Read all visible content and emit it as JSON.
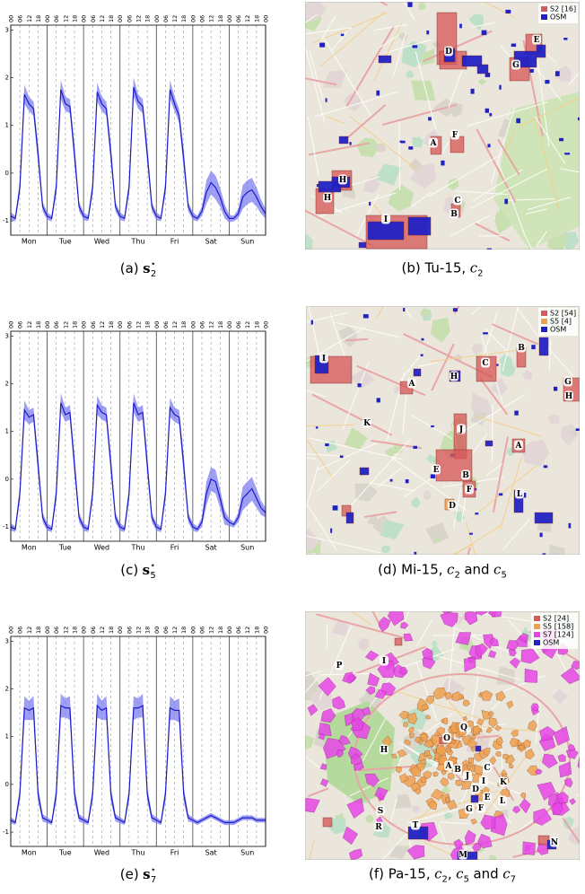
{
  "chart_data": [
    {
      "type": "line",
      "x": [
        0,
        3,
        6,
        9,
        12,
        15,
        18,
        21,
        24,
        27,
        30,
        33,
        36,
        39,
        42,
        45,
        48,
        51,
        54,
        57,
        60,
        63,
        66,
        69,
        72,
        75,
        78,
        81,
        84,
        87,
        90,
        93,
        96,
        99,
        102,
        105,
        108,
        111,
        114,
        117,
        120,
        123,
        126,
        129,
        132,
        135,
        138,
        141,
        144,
        147,
        150,
        153,
        156,
        159,
        162,
        165,
        168
      ],
      "xlim": [
        0,
        168
      ],
      "ylim": [
        -1.3,
        3.1
      ],
      "yticks": [
        -1,
        0,
        1,
        2,
        3
      ],
      "xticks": [
        {
          "value": 0,
          "label": "00"
        },
        {
          "value": 6,
          "label": "06"
        },
        12,
        18,
        {
          "value": 24,
          "label": "00"
        },
        {
          "value": 30,
          "label": "06"
        },
        {
          "value": 36,
          "label": "12"
        },
        {
          "value": 42,
          "label": "18"
        },
        {
          "value": 48,
          "label": "00"
        },
        {
          "value": 54,
          "label": "06"
        },
        {
          "value": 60,
          "label": "12"
        },
        {
          "value": 66,
          "label": "18"
        },
        {
          "value": 72,
          "label": "00"
        },
        {
          "value": 78,
          "label": "06"
        },
        {
          "value": 84,
          "label": "12"
        },
        {
          "value": 90,
          "label": "18"
        },
        {
          "value": 96,
          "label": "00"
        },
        {
          "value": 102,
          "label": "06"
        },
        {
          "value": 108,
          "label": "12"
        },
        {
          "value": 114,
          "label": "18"
        },
        {
          "value": 120,
          "label": "00"
        },
        {
          "value": 126,
          "label": "06"
        },
        {
          "value": 132,
          "label": "12"
        },
        {
          "value": 138,
          "label": "18"
        },
        {
          "value": 144,
          "label": "00"
        },
        {
          "value": 150,
          "label": "06"
        },
        {
          "value": 156,
          "label": "12"
        },
        {
          "value": 162,
          "label": "18"
        },
        {
          "value": 168,
          "label": "00"
        }
      ],
      "categories": [
        "Mon",
        "Tue",
        "Wed",
        "Thu",
        "Fri",
        "Sat",
        "Sun"
      ],
      "series": [
        {
          "color": "#1c1cc8",
          "band_color": "#7d7df2",
          "values": [
            -0.9,
            -0.95,
            -0.3,
            1.65,
            1.45,
            1.35,
            0.4,
            -0.7,
            -0.9,
            -0.95,
            -0.3,
            1.75,
            1.45,
            1.4,
            0.4,
            -0.7,
            -0.9,
            -0.95,
            -0.3,
            1.7,
            1.45,
            1.35,
            0.4,
            -0.7,
            -0.9,
            -0.95,
            -0.3,
            1.8,
            1.5,
            1.4,
            0.4,
            -0.7,
            -0.9,
            -0.95,
            -0.3,
            1.75,
            1.45,
            1.2,
            0.3,
            -0.7,
            -0.9,
            -0.95,
            -0.8,
            -0.4,
            -0.2,
            -0.3,
            -0.5,
            -0.8,
            -0.95,
            -0.95,
            -0.85,
            -0.5,
            -0.4,
            -0.35,
            -0.5,
            -0.7,
            -0.85
          ],
          "spread": [
            0.08,
            0.06,
            0.15,
            0.2,
            0.15,
            0.15,
            0.2,
            0.1,
            0.08,
            0.06,
            0.15,
            0.2,
            0.15,
            0.15,
            0.2,
            0.1,
            0.08,
            0.06,
            0.15,
            0.2,
            0.15,
            0.15,
            0.2,
            0.1,
            0.08,
            0.06,
            0.15,
            0.2,
            0.15,
            0.15,
            0.2,
            0.1,
            0.08,
            0.06,
            0.15,
            0.2,
            0.15,
            0.15,
            0.2,
            0.1,
            0.08,
            0.06,
            0.1,
            0.25,
            0.25,
            0.25,
            0.2,
            0.15,
            0.08,
            0.06,
            0.1,
            0.25,
            0.25,
            0.25,
            0.2,
            0.15,
            0.1
          ]
        }
      ]
    },
    {
      "type": "line",
      "x": [
        0,
        3,
        6,
        9,
        12,
        15,
        18,
        21,
        24,
        27,
        30,
        33,
        36,
        39,
        42,
        45,
        48,
        51,
        54,
        57,
        60,
        63,
        66,
        69,
        72,
        75,
        78,
        81,
        84,
        87,
        90,
        93,
        96,
        99,
        102,
        105,
        108,
        111,
        114,
        117,
        120,
        123,
        126,
        129,
        132,
        135,
        138,
        141,
        144,
        147,
        150,
        153,
        156,
        159,
        162,
        165,
        168
      ],
      "xlim": [
        0,
        168
      ],
      "ylim": [
        -1.3,
        3.1
      ],
      "yticks": [
        -1,
        0,
        1,
        2,
        3
      ],
      "xticks": [
        {
          "value": 0,
          "label": "00"
        },
        {
          "value": 6,
          "label": "06"
        },
        12,
        18,
        {
          "value": 24,
          "label": "00"
        },
        {
          "value": 30,
          "label": "06"
        },
        {
          "value": 36,
          "label": "12"
        },
        {
          "value": 42,
          "label": "18"
        },
        {
          "value": 48,
          "label": "00"
        },
        {
          "value": 54,
          "label": "06"
        },
        {
          "value": 60,
          "label": "12"
        },
        {
          "value": 66,
          "label": "18"
        },
        {
          "value": 72,
          "label": "00"
        },
        {
          "value": 78,
          "label": "06"
        },
        {
          "value": 84,
          "label": "12"
        },
        {
          "value": 90,
          "label": "18"
        },
        {
          "value": 96,
          "label": "00"
        },
        {
          "value": 102,
          "label": "06"
        },
        {
          "value": 108,
          "label": "12"
        },
        {
          "value": 114,
          "label": "18"
        },
        {
          "value": 120,
          "label": "00"
        },
        {
          "value": 126,
          "label": "06"
        },
        {
          "value": 132,
          "label": "12"
        },
        {
          "value": 138,
          "label": "18"
        },
        {
          "value": 144,
          "label": "00"
        },
        {
          "value": 150,
          "label": "06"
        },
        {
          "value": 156,
          "label": "12"
        },
        {
          "value": 162,
          "label": "18"
        },
        {
          "value": 168,
          "label": "00"
        }
      ],
      "categories": [
        "Mon",
        "Tue",
        "Wed",
        "Thu",
        "Fri",
        "Sat",
        "Sun"
      ],
      "series": [
        {
          "color": "#1c1cc8",
          "band_color": "#7d7df2",
          "values": [
            -1.0,
            -1.05,
            -0.3,
            1.45,
            1.3,
            1.35,
            0.3,
            -0.8,
            -1.0,
            -1.05,
            -0.3,
            1.6,
            1.35,
            1.4,
            0.3,
            -0.8,
            -1.0,
            -1.05,
            -0.3,
            1.55,
            1.4,
            1.35,
            0.3,
            -0.8,
            -1.0,
            -1.05,
            -0.3,
            1.6,
            1.35,
            1.4,
            0.3,
            -0.8,
            -1.0,
            -1.05,
            -0.3,
            1.5,
            1.35,
            1.3,
            0.3,
            -0.8,
            -1.0,
            -1.05,
            -0.9,
            -0.3,
            0.0,
            -0.05,
            -0.4,
            -0.8,
            -0.9,
            -0.95,
            -0.8,
            -0.4,
            -0.3,
            -0.2,
            -0.4,
            -0.6,
            -0.7
          ],
          "spread": [
            0.08,
            0.06,
            0.15,
            0.2,
            0.15,
            0.15,
            0.2,
            0.1,
            0.08,
            0.06,
            0.15,
            0.2,
            0.15,
            0.15,
            0.2,
            0.1,
            0.08,
            0.06,
            0.15,
            0.2,
            0.15,
            0.15,
            0.2,
            0.1,
            0.08,
            0.06,
            0.15,
            0.2,
            0.15,
            0.15,
            0.2,
            0.1,
            0.08,
            0.06,
            0.15,
            0.2,
            0.15,
            0.15,
            0.2,
            0.1,
            0.08,
            0.06,
            0.1,
            0.25,
            0.25,
            0.25,
            0.2,
            0.15,
            0.08,
            0.06,
            0.1,
            0.25,
            0.25,
            0.25,
            0.2,
            0.15,
            0.1
          ]
        }
      ]
    },
    {
      "type": "line",
      "x": [
        0,
        3,
        6,
        9,
        12,
        15,
        18,
        21,
        24,
        27,
        30,
        33,
        36,
        39,
        42,
        45,
        48,
        51,
        54,
        57,
        60,
        63,
        66,
        69,
        72,
        75,
        78,
        81,
        84,
        87,
        90,
        93,
        96,
        99,
        102,
        105,
        108,
        111,
        114,
        117,
        120,
        123,
        126,
        129,
        132,
        135,
        138,
        141,
        144,
        147,
        150,
        153,
        156,
        159,
        162,
        165,
        168
      ],
      "xlim": [
        0,
        168
      ],
      "ylim": [
        -1.3,
        3.1
      ],
      "yticks": [
        -1,
        0,
        1,
        2,
        3
      ],
      "xticks": [
        {
          "value": 0,
          "label": "00"
        },
        {
          "value": 6,
          "label": "06"
        },
        12,
        18,
        {
          "value": 24,
          "label": "00"
        },
        {
          "value": 30,
          "label": "06"
        },
        {
          "value": 36,
          "label": "12"
        },
        {
          "value": 42,
          "label": "18"
        },
        {
          "value": 48,
          "label": "00"
        },
        {
          "value": 54,
          "label": "06"
        },
        {
          "value": 60,
          "label": "12"
        },
        {
          "value": 66,
          "label": "18"
        },
        {
          "value": 72,
          "label": "00"
        },
        {
          "value": 78,
          "label": "06"
        },
        {
          "value": 84,
          "label": "12"
        },
        {
          "value": 90,
          "label": "18"
        },
        {
          "value": 96,
          "label": "00"
        },
        {
          "value": 102,
          "label": "06"
        },
        {
          "value": 108,
          "label": "12"
        },
        {
          "value": 114,
          "label": "18"
        },
        {
          "value": 120,
          "label": "00"
        },
        {
          "value": 126,
          "label": "06"
        },
        {
          "value": 132,
          "label": "12"
        },
        {
          "value": 138,
          "label": "18"
        },
        {
          "value": 144,
          "label": "00"
        },
        {
          "value": 150,
          "label": "06"
        },
        {
          "value": 156,
          "label": "12"
        },
        {
          "value": 162,
          "label": "18"
        },
        {
          "value": 168,
          "label": "00"
        }
      ],
      "categories": [
        "Mon",
        "Tue",
        "Wed",
        "Thu",
        "Fri",
        "Sat",
        "Sun"
      ],
      "series": [
        {
          "color": "#1c1cc8",
          "band_color": "#7d7df2",
          "values": [
            -0.75,
            -0.8,
            -0.2,
            1.6,
            1.55,
            1.6,
            -0.2,
            -0.7,
            -0.75,
            -0.8,
            -0.2,
            1.65,
            1.6,
            1.6,
            -0.2,
            -0.7,
            -0.75,
            -0.8,
            -0.2,
            1.65,
            1.55,
            1.6,
            -0.2,
            -0.7,
            -0.75,
            -0.8,
            -0.2,
            1.6,
            1.6,
            1.65,
            -0.2,
            -0.7,
            -0.75,
            -0.8,
            -0.2,
            1.6,
            1.55,
            1.55,
            -0.2,
            -0.7,
            -0.75,
            -0.8,
            -0.75,
            -0.7,
            -0.65,
            -0.7,
            -0.75,
            -0.8,
            -0.8,
            -0.8,
            -0.75,
            -0.7,
            -0.7,
            -0.7,
            -0.75,
            -0.75,
            -0.75
          ],
          "spread": [
            0.06,
            0.05,
            0.15,
            0.25,
            0.2,
            0.25,
            0.15,
            0.08,
            0.06,
            0.05,
            0.15,
            0.25,
            0.2,
            0.25,
            0.15,
            0.08,
            0.06,
            0.05,
            0.15,
            0.25,
            0.2,
            0.25,
            0.15,
            0.08,
            0.06,
            0.05,
            0.15,
            0.25,
            0.2,
            0.25,
            0.15,
            0.08,
            0.06,
            0.05,
            0.15,
            0.25,
            0.2,
            0.25,
            0.15,
            0.08,
            0.05,
            0.05,
            0.05,
            0.05,
            0.05,
            0.05,
            0.05,
            0.05,
            0.05,
            0.05,
            0.05,
            0.05,
            0.05,
            0.05,
            0.05,
            0.05,
            0.05
          ]
        }
      ]
    }
  ],
  "maps": [
    {
      "legend": [
        {
          "name": "S2 [16]",
          "color": "#d65a5a"
        },
        {
          "name": "OSM",
          "color": "#2222c4"
        }
      ],
      "labels": [
        "D",
        "E",
        "G",
        "A",
        "F",
        "H",
        "H",
        "C",
        "B",
        "I"
      ]
    },
    {
      "legend": [
        {
          "name": "S2 [54]",
          "color": "#d65a5a"
        },
        {
          "name": "S5 [4]",
          "color": "#f0a050"
        },
        {
          "name": "OSM",
          "color": "#2222c4"
        }
      ],
      "labels": [
        "I",
        "A",
        "H",
        "C",
        "B",
        "G",
        "H",
        "K",
        "J",
        "A",
        "E",
        "B",
        "F",
        "L",
        "D"
      ]
    },
    {
      "legend": [
        {
          "name": "S2 [24]",
          "color": "#d65a5a"
        },
        {
          "name": "S5 [158]",
          "color": "#f0a050"
        },
        {
          "name": "S7 [124]",
          "color": "#e645e6"
        },
        {
          "name": "OSM",
          "color": "#2222c4"
        }
      ],
      "labels": [
        "P",
        "I",
        "Q",
        "O",
        "H",
        "A",
        "B",
        "J",
        "C",
        "K",
        "I",
        "L",
        "D",
        "E",
        "G",
        "F",
        "S",
        "R",
        "T",
        "M",
        "N"
      ]
    }
  ],
  "captions": [
    [
      {
        "text": "(a)",
        "style": "normal"
      },
      {
        "text": "s",
        "style": "bold"
      },
      {
        "text": "⋆",
        "style": "sup"
      },
      {
        "text": "2",
        "style": "sub"
      }
    ],
    [
      {
        "text": "(b) Tu-15,",
        "style": "normal"
      },
      {
        "text": "c",
        "style": "italic"
      },
      {
        "text": "2",
        "style": "sub"
      }
    ],
    [
      {
        "text": "(c)",
        "style": "normal"
      },
      {
        "text": "s",
        "style": "bold"
      },
      {
        "text": "⋆",
        "style": "sup"
      },
      {
        "text": "5",
        "style": "sub"
      }
    ],
    [
      {
        "text": "(d) Mi-15,",
        "style": "normal"
      },
      {
        "text": "c",
        "style": "italic"
      },
      {
        "text": "2",
        "style": "sub"
      },
      {
        "text": "and",
        "style": "normal"
      },
      {
        "text": "c",
        "style": "italic"
      },
      {
        "text": "5",
        "style": "sub"
      }
    ],
    [
      {
        "text": "(e)",
        "style": "normal"
      },
      {
        "text": "s",
        "style": "bold"
      },
      {
        "text": "⋆",
        "style": "sup"
      },
      {
        "text": "7",
        "style": "sub"
      }
    ],
    [
      {
        "text": "(f) Pa-15,",
        "style": "normal"
      },
      {
        "text": "c",
        "style": "italic"
      },
      {
        "text": "2",
        "style": "sub"
      },
      {
        "text": ",",
        "style": "tight"
      },
      {
        "text": "c",
        "style": "italic"
      },
      {
        "text": "5",
        "style": "sub"
      },
      {
        "text": "and",
        "style": "normal"
      },
      {
        "text": "c",
        "style": "italic"
      },
      {
        "text": "7",
        "style": "sub"
      }
    ]
  ]
}
